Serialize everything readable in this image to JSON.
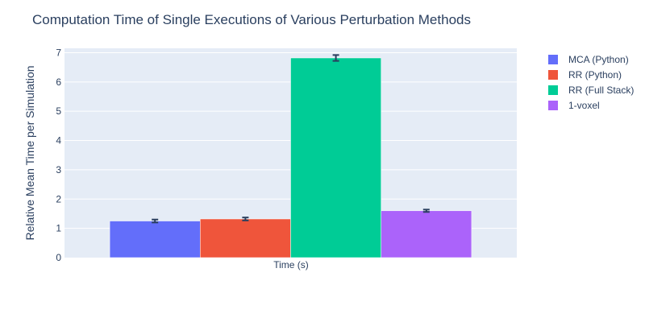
{
  "chart_data": {
    "type": "bar",
    "title": "Computation Time of Single Executions of Various Perturbation Methods",
    "xlabel": "",
    "ylabel": "Relative Mean Time per Simulation",
    "categories": [
      "Time (s)"
    ],
    "series": [
      {
        "name": "MCA (Python)",
        "values": [
          1.25
        ],
        "error": [
          0.05
        ],
        "color": "#636efa"
      },
      {
        "name": "RR (Python)",
        "values": [
          1.32
        ],
        "error": [
          0.05
        ],
        "color": "#ef553b"
      },
      {
        "name": "RR (Full Stack)",
        "values": [
          6.82
        ],
        "error": [
          0.1
        ],
        "color": "#00cc96"
      },
      {
        "name": "1-voxel",
        "values": [
          1.6
        ],
        "error": [
          0.04
        ],
        "color": "#ab63fa"
      }
    ],
    "ylim": [
      0,
      7.15
    ],
    "yticks": [
      0,
      1,
      2,
      3,
      4,
      5,
      6,
      7
    ],
    "grid": true,
    "legend": "top-right",
    "colors": {
      "plot_background": "#e5ecf6",
      "gridline": "#ffffff",
      "text": "#2a3f5f",
      "error_bar": "#2a3f5f"
    }
  }
}
